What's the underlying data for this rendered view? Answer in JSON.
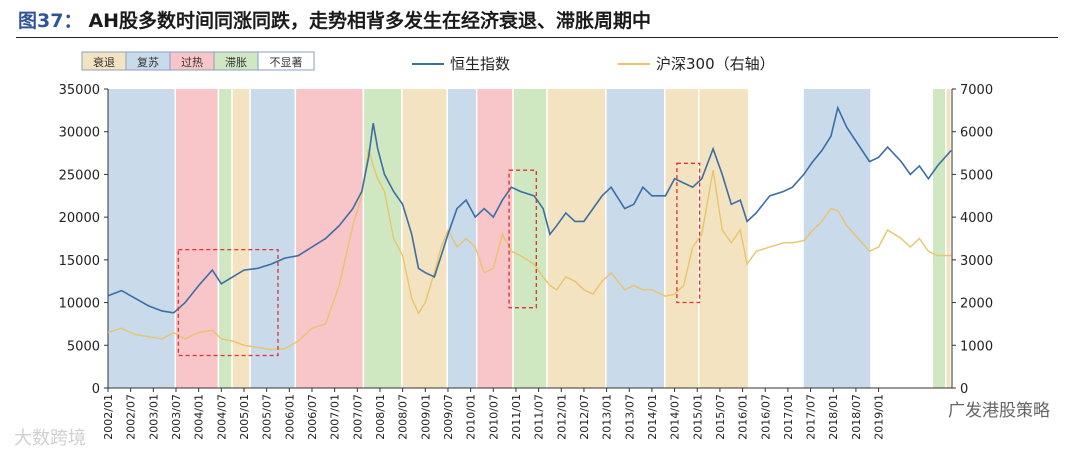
{
  "title": {
    "fig_label": "图37：",
    "text": "AH股多数时间同涨同跌，走势相背多发生在经济衰退、滞胀周期中"
  },
  "watermark": "大数跨境",
  "source": "广发港股策略",
  "chart_data": {
    "type": "line",
    "phase_legend": [
      {
        "label": "衰退",
        "color": "#f4e3c0"
      },
      {
        "label": "复苏",
        "color": "#c9daea"
      },
      {
        "label": "过热",
        "color": "#f8c5c9"
      },
      {
        "label": "滞胀",
        "color": "#cfe8c2"
      },
      {
        "label": "不显著",
        "color": "#ffffff"
      }
    ],
    "series": [
      {
        "name": "恒生指数",
        "axis": "left",
        "color": "#3a6ea5"
      },
      {
        "name": "沪深300（右轴）",
        "axis": "right",
        "color": "#e9c46a"
      }
    ],
    "x_ticks": [
      "2002/01",
      "2002/07",
      "2003/01",
      "2003/07",
      "2004/01",
      "2004/07",
      "2005/01",
      "2005/07",
      "2006/01",
      "2006/07",
      "2007/01",
      "2007/07",
      "2008/01",
      "2008/07",
      "2009/01",
      "2009/07",
      "2010/01",
      "2010/07",
      "2011/01",
      "2011/07",
      "2012/01",
      "2012/07",
      "2013/01",
      "2013/07",
      "2014/01",
      "2014/07",
      "2015/01",
      "2015/07",
      "2016/01",
      "2016/07",
      "2017/01",
      "2017/07",
      "2018/01",
      "2018/07",
      "2019/01"
    ],
    "y_left": {
      "ticks": [
        0,
        5000,
        10000,
        15000,
        20000,
        25000,
        30000,
        35000
      ],
      "range": [
        0,
        35000
      ]
    },
    "y_right": {
      "ticks": [
        0,
        1000,
        2000,
        3000,
        4000,
        5000,
        6000,
        7000
      ],
      "range": [
        0,
        7000
      ]
    },
    "phases": [
      {
        "from": 2002.0,
        "to": 2003.5,
        "phase": "复苏"
      },
      {
        "from": 2003.5,
        "to": 2004.45,
        "phase": "过热"
      },
      {
        "from": 2004.45,
        "to": 2004.75,
        "phase": "滞胀"
      },
      {
        "from": 2004.75,
        "to": 2005.15,
        "phase": "衰退"
      },
      {
        "from": 2005.15,
        "to": 2006.15,
        "phase": "复苏"
      },
      {
        "from": 2006.15,
        "to": 2007.65,
        "phase": "过热"
      },
      {
        "from": 2007.65,
        "to": 2008.5,
        "phase": "滞胀"
      },
      {
        "from": 2008.5,
        "to": 2009.5,
        "phase": "衰退"
      },
      {
        "from": 2009.5,
        "to": 2010.15,
        "phase": "复苏"
      },
      {
        "from": 2010.15,
        "to": 2010.95,
        "phase": "过热"
      },
      {
        "from": 2010.95,
        "to": 2011.7,
        "phase": "滞胀"
      },
      {
        "from": 2011.7,
        "to": 2013.0,
        "phase": "衰退"
      },
      {
        "from": 2013.0,
        "to": 2014.3,
        "phase": "复苏"
      },
      {
        "from": 2014.3,
        "to": 2015.05,
        "phase": "衰退"
      },
      {
        "from": 2015.05,
        "to": 2016.15,
        "phase": "衰退"
      },
      {
        "from": 2016.15,
        "to": 2017.35,
        "phase": "不显著"
      },
      {
        "from": 2017.35,
        "to": 2018.85,
        "phase": "复苏"
      },
      {
        "from": 2018.85,
        "to": 2020.2,
        "phase": "不显著"
      },
      {
        "from": 2020.2,
        "to": 2020.5,
        "phase": "滞胀"
      },
      {
        "from": 2020.5,
        "to": 2020.62,
        "phase": "衰退"
      }
    ],
    "hsi": [
      [
        2002.0,
        10800
      ],
      [
        2002.3,
        11400
      ],
      [
        2002.6,
        10500
      ],
      [
        2002.9,
        9600
      ],
      [
        2003.2,
        9000
      ],
      [
        2003.45,
        8800
      ],
      [
        2003.7,
        10000
      ],
      [
        2004.0,
        12000
      ],
      [
        2004.3,
        13800
      ],
      [
        2004.5,
        12200
      ],
      [
        2004.75,
        13000
      ],
      [
        2005.0,
        13800
      ],
      [
        2005.3,
        14000
      ],
      [
        2005.6,
        14500
      ],
      [
        2005.9,
        15200
      ],
      [
        2006.2,
        15500
      ],
      [
        2006.5,
        16500
      ],
      [
        2006.8,
        17500
      ],
      [
        2007.1,
        19000
      ],
      [
        2007.4,
        21000
      ],
      [
        2007.6,
        23000
      ],
      [
        2007.75,
        27000
      ],
      [
        2007.85,
        31000
      ],
      [
        2007.95,
        28000
      ],
      [
        2008.1,
        25000
      ],
      [
        2008.3,
        23000
      ],
      [
        2008.5,
        21500
      ],
      [
        2008.7,
        18000
      ],
      [
        2008.85,
        14000
      ],
      [
        2009.0,
        13500
      ],
      [
        2009.2,
        13000
      ],
      [
        2009.35,
        15500
      ],
      [
        2009.5,
        18000
      ],
      [
        2009.7,
        21000
      ],
      [
        2009.9,
        22000
      ],
      [
        2010.1,
        20000
      ],
      [
        2010.3,
        21000
      ],
      [
        2010.5,
        20000
      ],
      [
        2010.7,
        22000
      ],
      [
        2010.9,
        23500
      ],
      [
        2011.1,
        23000
      ],
      [
        2011.4,
        22500
      ],
      [
        2011.6,
        21000
      ],
      [
        2011.75,
        18000
      ],
      [
        2011.9,
        19000
      ],
      [
        2012.1,
        20500
      ],
      [
        2012.3,
        19500
      ],
      [
        2012.5,
        19500
      ],
      [
        2012.7,
        21000
      ],
      [
        2012.9,
        22500
      ],
      [
        2013.1,
        23500
      ],
      [
        2013.4,
        21000
      ],
      [
        2013.6,
        21500
      ],
      [
        2013.8,
        23500
      ],
      [
        2014.0,
        22500
      ],
      [
        2014.3,
        22500
      ],
      [
        2014.5,
        24500
      ],
      [
        2014.7,
        24000
      ],
      [
        2014.9,
        23500
      ],
      [
        2015.1,
        24500
      ],
      [
        2015.35,
        28000
      ],
      [
        2015.55,
        25000
      ],
      [
        2015.75,
        21500
      ],
      [
        2015.95,
        22000
      ],
      [
        2016.1,
        19500
      ],
      [
        2016.3,
        20500
      ],
      [
        2016.6,
        22500
      ],
      [
        2016.9,
        23000
      ],
      [
        2017.1,
        23500
      ],
      [
        2017.35,
        25000
      ],
      [
        2017.55,
        26500
      ],
      [
        2017.75,
        27800
      ],
      [
        2017.95,
        29500
      ],
      [
        2018.1,
        32800
      ],
      [
        2018.3,
        30500
      ],
      [
        2018.55,
        28500
      ],
      [
        2018.8,
        26500
      ],
      [
        2019.0,
        27000
      ],
      [
        2019.2,
        28200
      ],
      [
        2019.5,
        26500
      ],
      [
        2019.7,
        25000
      ],
      [
        2019.9,
        26000
      ],
      [
        2020.1,
        24500
      ],
      [
        2020.3,
        26000
      ],
      [
        2020.6,
        27800
      ]
    ],
    "csi300": [
      [
        2002.0,
        1300
      ],
      [
        2002.3,
        1400
      ],
      [
        2002.6,
        1250
      ],
      [
        2002.9,
        1200
      ],
      [
        2003.2,
        1150
      ],
      [
        2003.45,
        1300
      ],
      [
        2003.7,
        1150
      ],
      [
        2004.0,
        1300
      ],
      [
        2004.3,
        1350
      ],
      [
        2004.5,
        1150
      ],
      [
        2004.75,
        1100
      ],
      [
        2005.0,
        1000
      ],
      [
        2005.3,
        950
      ],
      [
        2005.6,
        900
      ],
      [
        2005.9,
        920
      ],
      [
        2006.2,
        1100
      ],
      [
        2006.5,
        1400
      ],
      [
        2006.8,
        1500
      ],
      [
        2007.1,
        2400
      ],
      [
        2007.4,
        3800
      ],
      [
        2007.6,
        4500
      ],
      [
        2007.75,
        5600
      ],
      [
        2007.85,
        5200
      ],
      [
        2007.95,
        4900
      ],
      [
        2008.1,
        4600
      ],
      [
        2008.3,
        3500
      ],
      [
        2008.5,
        3100
      ],
      [
        2008.7,
        2100
      ],
      [
        2008.85,
        1750
      ],
      [
        2009.0,
        2000
      ],
      [
        2009.2,
        2700
      ],
      [
        2009.35,
        3300
      ],
      [
        2009.5,
        3700
      ],
      [
        2009.7,
        3300
      ],
      [
        2009.9,
        3500
      ],
      [
        2010.1,
        3300
      ],
      [
        2010.3,
        2700
      ],
      [
        2010.5,
        2800
      ],
      [
        2010.7,
        3600
      ],
      [
        2010.9,
        3200
      ],
      [
        2011.1,
        3100
      ],
      [
        2011.4,
        2900
      ],
      [
        2011.6,
        2600
      ],
      [
        2011.75,
        2400
      ],
      [
        2011.9,
        2300
      ],
      [
        2012.1,
        2600
      ],
      [
        2012.3,
        2500
      ],
      [
        2012.5,
        2300
      ],
      [
        2012.7,
        2200
      ],
      [
        2012.9,
        2500
      ],
      [
        2013.1,
        2700
      ],
      [
        2013.4,
        2300
      ],
      [
        2013.6,
        2400
      ],
      [
        2013.8,
        2300
      ],
      [
        2014.0,
        2300
      ],
      [
        2014.3,
        2150
      ],
      [
        2014.5,
        2200
      ],
      [
        2014.7,
        2400
      ],
      [
        2014.9,
        3300
      ],
      [
        2015.1,
        3600
      ],
      [
        2015.35,
        5100
      ],
      [
        2015.55,
        3700
      ],
      [
        2015.75,
        3400
      ],
      [
        2015.95,
        3700
      ],
      [
        2016.1,
        2900
      ],
      [
        2016.3,
        3200
      ],
      [
        2016.6,
        3300
      ],
      [
        2016.9,
        3400
      ],
      [
        2017.1,
        3400
      ],
      [
        2017.35,
        3450
      ],
      [
        2017.55,
        3700
      ],
      [
        2017.75,
        3900
      ],
      [
        2017.95,
        4200
      ],
      [
        2018.1,
        4150
      ],
      [
        2018.3,
        3800
      ],
      [
        2018.55,
        3500
      ],
      [
        2018.8,
        3200
      ],
      [
        2019.0,
        3300
      ],
      [
        2019.2,
        3700
      ],
      [
        2019.5,
        3500
      ],
      [
        2019.7,
        3300
      ],
      [
        2019.9,
        3500
      ],
      [
        2020.1,
        3200
      ],
      [
        2020.3,
        3100
      ],
      [
        2020.6,
        3100
      ]
    ],
    "highlight_boxes": [
      {
        "from": 2003.55,
        "to": 2005.75,
        "left_top": 16200,
        "left_bottom": 3800
      },
      {
        "from": 2010.85,
        "to": 2011.45,
        "left_top": 25500,
        "left_bottom": 9400
      },
      {
        "from": 2014.55,
        "to": 2015.05,
        "left_top": 26300,
        "left_bottom": 10000
      }
    ]
  }
}
